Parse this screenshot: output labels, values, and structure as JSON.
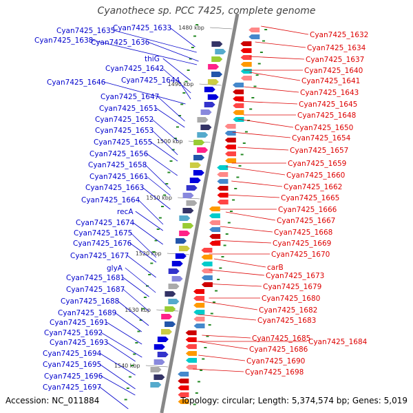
{
  "title": "Cyanothece sp. PCC 7425, complete genome",
  "footer": {
    "accession": "Accession: NC_011884",
    "topology": "Topology: circular; Length: 5,374,574 bp; Genes: 5,019"
  },
  "colors": {
    "left_genes": "#0000cc",
    "right_genes": "#dd0000",
    "backbone": "#888888",
    "ticks": "#228822"
  },
  "scale_marks": [
    "1480 kbp",
    "1490 kbp",
    "1500 kbp",
    "1510 kbp",
    "1520 kbp",
    "1530 kbp",
    "1540 kbp"
  ],
  "left_genes": [
    "Cyan7425_1633",
    "Cyan7425_1635",
    "Cyan7425_1638",
    "Cyan7425_1636",
    "thiG",
    "Cyan7425_1642",
    "Cyan7425_1644",
    "Cyan7425_1646",
    "Cyan7425_1647",
    "Cyan7425_1651",
    "Cyan7425_1652",
    "Cyan7425_1653",
    "Cyan7425_1655",
    "Cyan7425_1656",
    "Cyan7425_1658",
    "Cyan7425_1661",
    "Cyan7425_1663",
    "Cyan7425_1664",
    "recA",
    "Cyan7425_1674",
    "Cyan7425_1675",
    "Cyan7425_1676",
    "Cyan7425_1677",
    "glyA",
    "Cyan7425_1681",
    "Cyan7425_1687",
    "Cyan7425_1688",
    "Cyan7425_1689",
    "Cyan7425_1691",
    "Cyan7425_1692",
    "Cyan7425_1693",
    "Cyan7425_1694",
    "Cyan7425_1695",
    "Cyan7425_1696",
    "Cyan7425_1697"
  ],
  "right_genes": [
    "Cyan7425_1632",
    "Cyan7425_1634",
    "Cyan7425_1637",
    "Cyan7425_1640",
    "Cyan7425_1641",
    "Cyan7425_1643",
    "Cyan7425_1645",
    "Cyan7425_1648",
    "Cyan7425_1650",
    "Cyan7425_1654",
    "Cyan7425_1657",
    "Cyan7425_1659",
    "Cyan7425_1660",
    "Cyan7425_1662",
    "Cyan7425_1665",
    "Cyan7425_1666",
    "Cyan7425_1667",
    "Cyan7425_1668",
    "Cyan7425_1669",
    "Cyan7425_1670",
    "carB",
    "Cyan7425_1673",
    "Cyan7425_1679",
    "Cyan7425_1680",
    "Cyan7425_1682",
    "Cyan7425_1683",
    "Cyan7425_1685",
    "Cyan7425_1684",
    "Cyan7425_1686",
    "Cyan7425_1690",
    "Cyan7425_1698"
  ]
}
